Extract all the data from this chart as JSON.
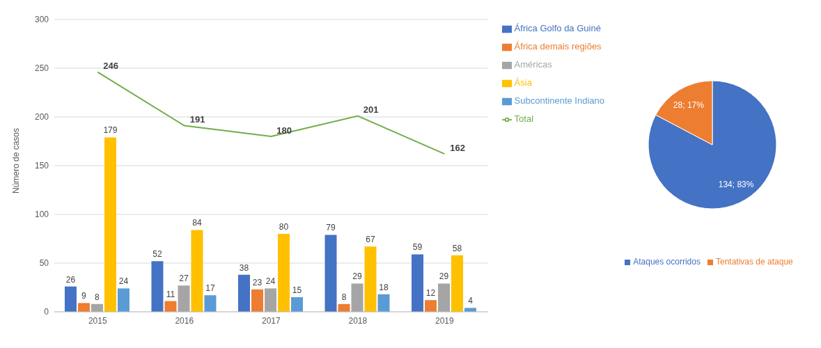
{
  "chart_data": [
    {
      "type": "bar",
      "ylabel": "Número de casos",
      "categories": [
        "2015",
        "2016",
        "2017",
        "2018",
        "2019"
      ],
      "ylim": [
        0,
        300
      ],
      "yticks": [
        0,
        50,
        100,
        150,
        200,
        250,
        300
      ],
      "grid": "y",
      "legend": "right",
      "data_labels": true,
      "series": [
        {
          "name": "África Golfo da Guiné",
          "color": "#4472c4",
          "values": [
            26,
            52,
            38,
            79,
            59
          ]
        },
        {
          "name": "África demais regiões",
          "color": "#ed7d31",
          "values": [
            9,
            11,
            23,
            8,
            12
          ]
        },
        {
          "name": "Américas",
          "color": "#a5a5a5",
          "values": [
            8,
            27,
            24,
            29,
            29
          ]
        },
        {
          "name": "Ásia",
          "color": "#ffc000",
          "values": [
            179,
            84,
            80,
            67,
            58
          ]
        },
        {
          "name": "Subcontinente Indiano",
          "color": "#5b9bd5",
          "values": [
            24,
            17,
            15,
            18,
            4
          ]
        },
        {
          "name": "Total",
          "type": "line",
          "color": "#70ad47",
          "values": [
            246,
            191,
            180,
            201,
            162
          ]
        }
      ]
    },
    {
      "type": "pie",
      "categories": [
        "Ataques ocorridos",
        "Tentativas de ataque"
      ],
      "values": [
        134,
        28
      ],
      "colors": [
        "#4472c4",
        "#ed7d31"
      ],
      "value_labels": [
        "134; 83%",
        "28; 17%"
      ],
      "legend": "bottom"
    }
  ]
}
